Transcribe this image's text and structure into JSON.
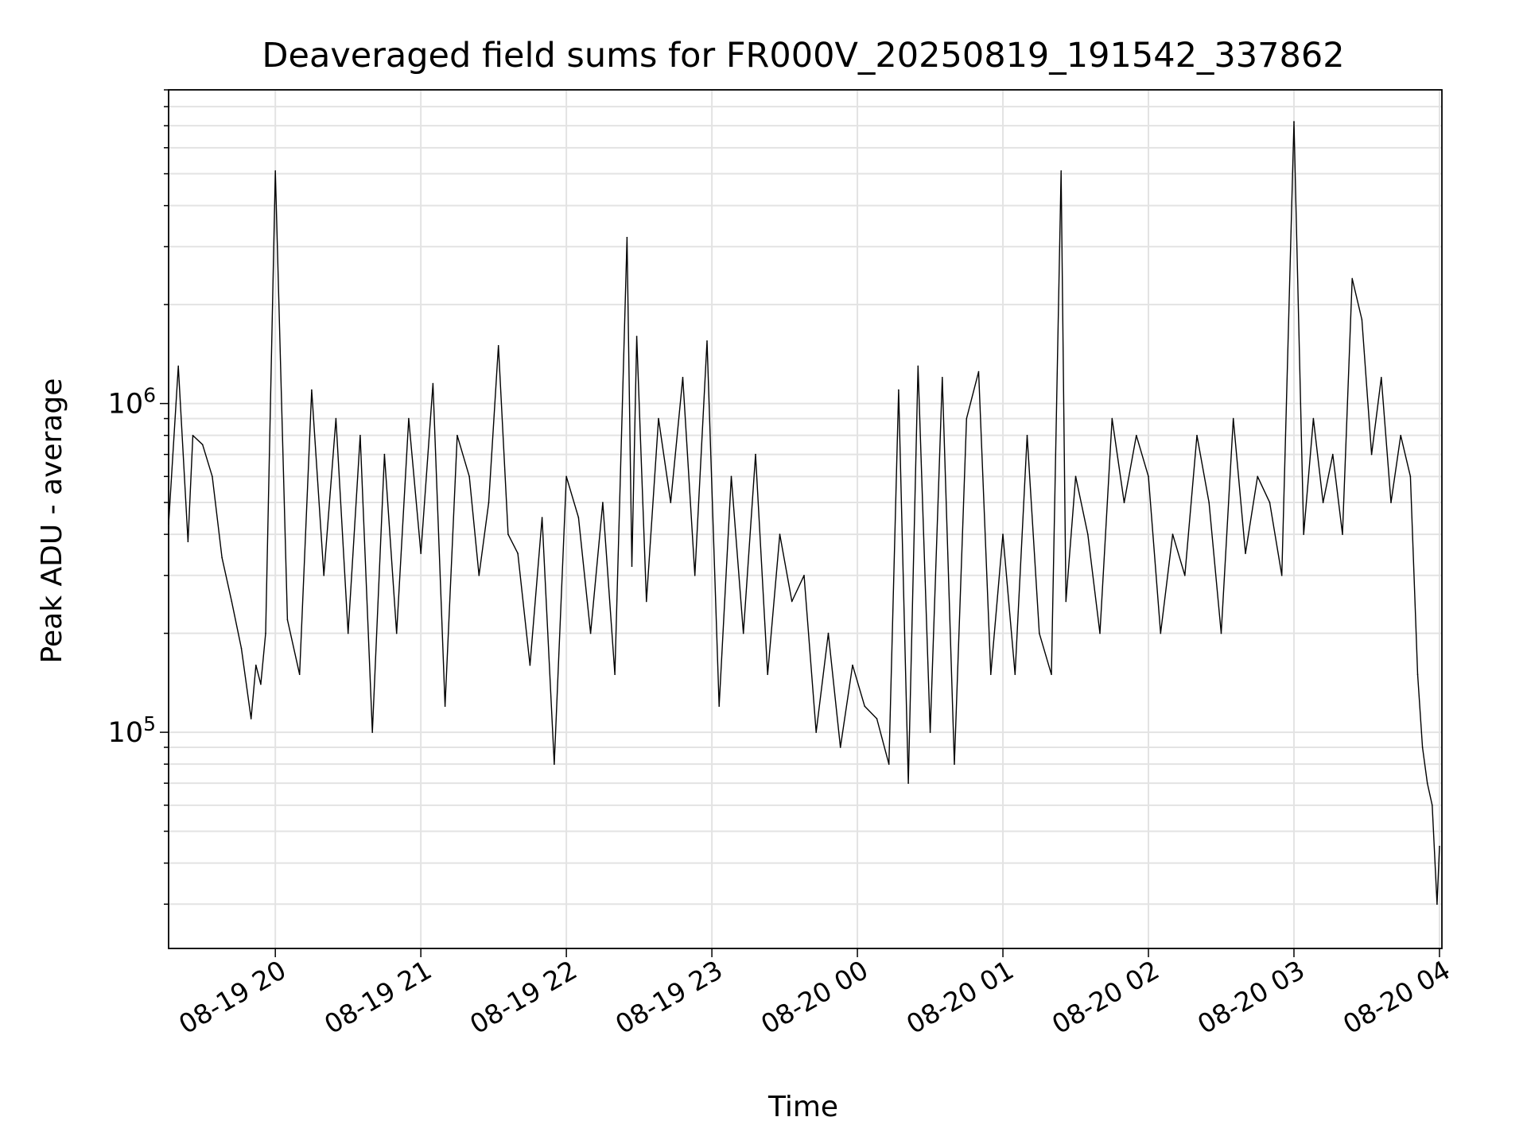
{
  "chart_data": {
    "type": "line",
    "title": "Deaveraged field sums for FR000V_20250819_191542_337862",
    "xlabel": "Time",
    "ylabel": "Peak ADU - average",
    "yscale": "log",
    "ylim": [
      22000,
      9000000
    ],
    "xlim": [
      "2025-08-19 19:16",
      "2025-08-20 04:01"
    ],
    "x_ticks": [
      "08-19 20",
      "08-19 21",
      "08-19 22",
      "08-19 23",
      "08-20 00",
      "08-20 01",
      "08-20 02",
      "08-20 03",
      "08-20 04"
    ],
    "y_ticks": [
      {
        "base": "10",
        "exp": "5",
        "value": 100000
      },
      {
        "base": "10",
        "exp": "6",
        "value": 1000000
      }
    ],
    "grid": true,
    "line_color": "#000000",
    "series": [
      {
        "x": [
          "2025-08-19 19:16",
          "2025-08-19 19:20",
          "2025-08-19 19:24",
          "2025-08-19 19:26",
          "2025-08-19 19:30",
          "2025-08-19 19:34",
          "2025-08-19 19:38",
          "2025-08-19 19:42",
          "2025-08-19 19:46",
          "2025-08-19 19:50",
          "2025-08-19 19:52",
          "2025-08-19 19:54",
          "2025-08-19 19:56",
          "2025-08-19 20:00",
          "2025-08-19 20:05",
          "2025-08-19 20:10",
          "2025-08-19 20:15",
          "2025-08-19 20:20",
          "2025-08-19 20:25",
          "2025-08-19 20:30",
          "2025-08-19 20:35",
          "2025-08-19 20:40",
          "2025-08-19 20:45",
          "2025-08-19 20:50",
          "2025-08-19 20:55",
          "2025-08-19 21:00",
          "2025-08-19 21:05",
          "2025-08-19 21:10",
          "2025-08-19 21:15",
          "2025-08-19 21:20",
          "2025-08-19 21:24",
          "2025-08-19 21:28",
          "2025-08-19 21:32",
          "2025-08-19 21:36",
          "2025-08-19 21:40",
          "2025-08-19 21:45",
          "2025-08-19 21:50",
          "2025-08-19 21:55",
          "2025-08-19 22:00",
          "2025-08-19 22:05",
          "2025-08-19 22:10",
          "2025-08-19 22:15",
          "2025-08-19 22:20",
          "2025-08-19 22:25",
          "2025-08-19 22:27",
          "2025-08-19 22:29",
          "2025-08-19 22:33",
          "2025-08-19 22:38",
          "2025-08-19 22:43",
          "2025-08-19 22:48",
          "2025-08-19 22:53",
          "2025-08-19 22:58",
          "2025-08-19 23:03",
          "2025-08-19 23:08",
          "2025-08-19 23:13",
          "2025-08-19 23:18",
          "2025-08-19 23:23",
          "2025-08-19 23:28",
          "2025-08-19 23:33",
          "2025-08-19 23:38",
          "2025-08-19 23:43",
          "2025-08-19 23:48",
          "2025-08-19 23:53",
          "2025-08-19 23:58",
          "2025-08-20 00:03",
          "2025-08-20 00:08",
          "2025-08-20 00:13",
          "2025-08-20 00:17",
          "2025-08-20 00:21",
          "2025-08-20 00:25",
          "2025-08-20 00:30",
          "2025-08-20 00:35",
          "2025-08-20 00:40",
          "2025-08-20 00:45",
          "2025-08-20 00:50",
          "2025-08-20 00:55",
          "2025-08-20 01:00",
          "2025-08-20 01:05",
          "2025-08-20 01:10",
          "2025-08-20 01:15",
          "2025-08-20 01:20",
          "2025-08-20 01:24",
          "2025-08-20 01:26",
          "2025-08-20 01:30",
          "2025-08-20 01:35",
          "2025-08-20 01:40",
          "2025-08-20 01:45",
          "2025-08-20 01:50",
          "2025-08-20 01:55",
          "2025-08-20 02:00",
          "2025-08-20 02:05",
          "2025-08-20 02:10",
          "2025-08-20 02:15",
          "2025-08-20 02:20",
          "2025-08-20 02:25",
          "2025-08-20 02:30",
          "2025-08-20 02:35",
          "2025-08-20 02:40",
          "2025-08-20 02:45",
          "2025-08-20 02:50",
          "2025-08-20 02:55",
          "2025-08-20 03:00",
          "2025-08-20 03:04",
          "2025-08-20 03:08",
          "2025-08-20 03:12",
          "2025-08-20 03:16",
          "2025-08-20 03:20",
          "2025-08-20 03:24",
          "2025-08-20 03:28",
          "2025-08-20 03:32",
          "2025-08-20 03:36",
          "2025-08-20 03:40",
          "2025-08-20 03:44",
          "2025-08-20 03:48",
          "2025-08-20 03:51",
          "2025-08-20 03:53",
          "2025-08-20 03:55",
          "2025-08-20 03:57",
          "2025-08-20 03:59",
          "2025-08-20 04:00"
        ],
        "y": [
          430000,
          1300000,
          380000,
          800000,
          750000,
          600000,
          340000,
          250000,
          180000,
          110000,
          160000,
          140000,
          200000,
          5100000,
          220000,
          150000,
          1100000,
          300000,
          900000,
          200000,
          800000,
          100000,
          700000,
          200000,
          900000,
          350000,
          1150000,
          120000,
          800000,
          600000,
          300000,
          500000,
          1500000,
          400000,
          350000,
          160000,
          450000,
          80000,
          600000,
          450000,
          200000,
          500000,
          150000,
          3200000,
          320000,
          1600000,
          250000,
          900000,
          500000,
          1200000,
          300000,
          1550000,
          120000,
          600000,
          200000,
          700000,
          150000,
          400000,
          250000,
          300000,
          100000,
          200000,
          90000,
          160000,
          120000,
          110000,
          80000,
          1100000,
          70000,
          1300000,
          100000,
          1200000,
          80000,
          900000,
          1250000,
          150000,
          400000,
          150000,
          800000,
          200000,
          150000,
          5100000,
          250000,
          600000,
          400000,
          200000,
          900000,
          500000,
          800000,
          600000,
          200000,
          400000,
          300000,
          800000,
          500000,
          200000,
          900000,
          350000,
          600000,
          500000,
          300000,
          7200000,
          400000,
          900000,
          500000,
          700000,
          400000,
          2400000,
          1800000,
          700000,
          1200000,
          500000,
          800000,
          600000,
          150000,
          90000,
          70000,
          60000,
          30000,
          45000
        ]
      }
    ]
  }
}
